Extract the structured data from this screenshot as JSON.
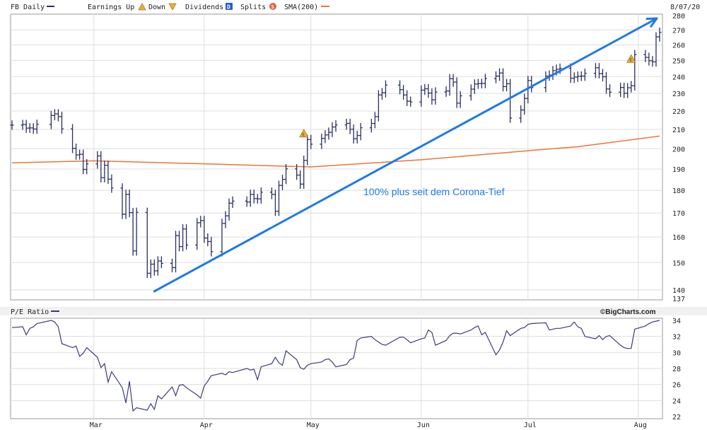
{
  "header": {
    "ticker_label": "FB Daily",
    "earnings_up_label": "Earnings Up",
    "down_label": "Down",
    "dividends_label": "Dividends",
    "dividends_marker": "D",
    "splits_label": "Splits",
    "splits_marker": "S",
    "sma_label": "SMA(200)",
    "date_label": "8/07/20"
  },
  "lower_panel": {
    "title": "P/E Ratio",
    "credit": "©BigCharts.com"
  },
  "colors": {
    "price_bars": "#2b2f5e",
    "sma": "#e8763a",
    "trendline": "#1f7ae6",
    "pe_line": "#3c3c78",
    "grid": "#dddddd",
    "panel_bg": "#f1f1f1",
    "earnings_marker": "#e8b13a"
  },
  "chart_data": [
    {
      "type": "ohlc",
      "title": "FB Daily",
      "x_ticks": [
        "Mar",
        "Apr",
        "May",
        "Jun",
        "Jul",
        "Aug"
      ],
      "x_range": [
        "2020-02-07",
        "2020-08-07"
      ],
      "ylim": [
        137,
        280
      ],
      "y_ticks": [
        137,
        140,
        150,
        160,
        170,
        180,
        190,
        200,
        210,
        220,
        230,
        240,
        250,
        260,
        270,
        280
      ],
      "scale": "log",
      "grid": true,
      "closes": [
        [
          "2020-02-07",
          212.3
        ],
        [
          "2020-02-10",
          212.6
        ],
        [
          "2020-02-11",
          210.7
        ],
        [
          "2020-02-12",
          210.8
        ],
        [
          "2020-02-13",
          210.2
        ],
        [
          "2020-02-14",
          212.7
        ],
        [
          "2020-02-18",
          217.5
        ],
        [
          "2020-02-19",
          218.4
        ],
        [
          "2020-02-20",
          216.9
        ],
        [
          "2020-02-21",
          210.3
        ],
        [
          "2020-02-24",
          200.2
        ],
        [
          "2020-02-25",
          196.9
        ],
        [
          "2020-02-26",
          197.2
        ],
        [
          "2020-02-27",
          189.8
        ],
        [
          "2020-02-28",
          192.5
        ],
        [
          "2020-03-02",
          196.4
        ],
        [
          "2020-03-03",
          185.9
        ],
        [
          "2020-03-04",
          191.8
        ],
        [
          "2020-03-05",
          185.2
        ],
        [
          "2020-03-06",
          181.1
        ],
        [
          "2020-03-09",
          169.5
        ],
        [
          "2020-03-10",
          178.2
        ],
        [
          "2020-03-11",
          170.2
        ],
        [
          "2020-03-12",
          154.5
        ],
        [
          "2020-03-13",
          170.3
        ],
        [
          "2020-03-16",
          146.0
        ],
        [
          "2020-03-17",
          149.4
        ],
        [
          "2020-03-18",
          146.9
        ],
        [
          "2020-03-19",
          150.6
        ],
        [
          "2020-03-20",
          149.7
        ],
        [
          "2020-03-23",
          148.1
        ],
        [
          "2020-03-24",
          160.6
        ],
        [
          "2020-03-25",
          156.2
        ],
        [
          "2020-03-26",
          163.3
        ],
        [
          "2020-03-27",
          156.8
        ],
        [
          "2020-03-30",
          165.9
        ],
        [
          "2020-03-31",
          166.8
        ],
        [
          "2020-04-01",
          159.6
        ],
        [
          "2020-04-02",
          158.2
        ],
        [
          "2020-04-03",
          154.2
        ],
        [
          "2020-04-06",
          165.6
        ],
        [
          "2020-04-07",
          168.8
        ],
        [
          "2020-04-08",
          174.3
        ],
        [
          "2020-04-09",
          175.2
        ],
        [
          "2020-04-13",
          174.8
        ],
        [
          "2020-04-14",
          178.2
        ],
        [
          "2020-04-15",
          176.3
        ],
        [
          "2020-04-16",
          176.2
        ],
        [
          "2020-04-17",
          179.2
        ],
        [
          "2020-04-20",
          178.2
        ],
        [
          "2020-04-21",
          170.8
        ],
        [
          "2020-04-22",
          182.3
        ],
        [
          "2020-04-23",
          185.1
        ],
        [
          "2020-04-24",
          190.1
        ],
        [
          "2020-04-27",
          187.1
        ],
        [
          "2020-04-28",
          182.9
        ],
        [
          "2020-04-29",
          194.2
        ],
        [
          "2020-04-30",
          204.7
        ],
        [
          "2020-05-01",
          202.3
        ],
        [
          "2020-05-04",
          205.3
        ],
        [
          "2020-05-05",
          207.1
        ],
        [
          "2020-05-06",
          208.5
        ],
        [
          "2020-05-07",
          211.3
        ],
        [
          "2020-05-08",
          212.4
        ],
        [
          "2020-05-11",
          213.2
        ],
        [
          "2020-05-12",
          210.1
        ],
        [
          "2020-05-13",
          205.1
        ],
        [
          "2020-05-14",
          206.8
        ],
        [
          "2020-05-15",
          210.9
        ],
        [
          "2020-05-18",
          213.2
        ],
        [
          "2020-05-19",
          216.9
        ],
        [
          "2020-05-20",
          229.1
        ],
        [
          "2020-05-21",
          230.4
        ],
        [
          "2020-05-22",
          234.9
        ],
        [
          "2020-05-26",
          232.2
        ],
        [
          "2020-05-27",
          229.1
        ],
        [
          "2020-05-28",
          225.5
        ],
        [
          "2020-05-29",
          225.1
        ],
        [
          "2020-06-01",
          231.9
        ],
        [
          "2020-06-02",
          232.7
        ],
        [
          "2020-06-03",
          230.2
        ],
        [
          "2020-06-04",
          226.3
        ],
        [
          "2020-06-05",
          230.8
        ],
        [
          "2020-06-08",
          231.4
        ],
        [
          "2020-06-09",
          238.7
        ],
        [
          "2020-06-10",
          236.7
        ],
        [
          "2020-06-11",
          224.4
        ],
        [
          "2020-06-12",
          228.6
        ],
        [
          "2020-06-15",
          232.5
        ],
        [
          "2020-06-16",
          235.5
        ],
        [
          "2020-06-17",
          235.8
        ],
        [
          "2020-06-18",
          235.9
        ],
        [
          "2020-06-19",
          238.8
        ],
        [
          "2020-06-22",
          240.3
        ],
        [
          "2020-06-23",
          242.2
        ],
        [
          "2020-06-24",
          234.0
        ],
        [
          "2020-06-25",
          235.7
        ],
        [
          "2020-06-26",
          216.1
        ],
        [
          "2020-06-29",
          220.6
        ],
        [
          "2020-06-30",
          227.1
        ],
        [
          "2020-07-01",
          237.6
        ],
        [
          "2020-07-02",
          233.4
        ],
        [
          "2020-07-06",
          240.3
        ],
        [
          "2020-07-07",
          240.9
        ],
        [
          "2020-07-08",
          243.6
        ],
        [
          "2020-07-09",
          244.5
        ],
        [
          "2020-07-10",
          245.1
        ],
        [
          "2020-07-13",
          239.0
        ],
        [
          "2020-07-14",
          239.7
        ],
        [
          "2020-07-15",
          240.2
        ],
        [
          "2020-07-16",
          240.3
        ],
        [
          "2020-07-17",
          242.0
        ],
        [
          "2020-07-20",
          245.4
        ],
        [
          "2020-07-21",
          241.8
        ],
        [
          "2020-07-22",
          239.9
        ],
        [
          "2020-07-23",
          232.6
        ],
        [
          "2020-07-24",
          230.7
        ],
        [
          "2020-07-27",
          233.5
        ],
        [
          "2020-07-28",
          230.1
        ],
        [
          "2020-07-29",
          233.3
        ],
        [
          "2020-07-30",
          234.5
        ],
        [
          "2020-07-31",
          253.7
        ],
        [
          "2020-08-03",
          251.9
        ],
        [
          "2020-08-04",
          249.8
        ],
        [
          "2020-08-05",
          249.1
        ],
        [
          "2020-08-06",
          265.3
        ],
        [
          "2020-08-07",
          268.4
        ]
      ],
      "sma_200": [
        [
          "2020-02-07",
          193.0
        ],
        [
          "2020-03-01",
          194.0
        ],
        [
          "2020-04-01",
          192.5
        ],
        [
          "2020-05-01",
          191.0
        ],
        [
          "2020-06-01",
          194.5
        ],
        [
          "2020-07-01",
          199.0
        ],
        [
          "2020-07-15",
          201.0
        ],
        [
          "2020-08-07",
          206.5
        ]
      ],
      "earnings_markers": [
        {
          "date": "2020-04-29",
          "label": "E"
        },
        {
          "date": "2020-07-30",
          "label": "E"
        }
      ],
      "trendline": {
        "from": [
          "2020-03-18",
          139.5
        ],
        "to": [
          "2020-08-07",
          278
        ],
        "annotation": "100% plus seit dem Corona-Tief"
      }
    },
    {
      "type": "line",
      "title": "P/E Ratio",
      "ylim": [
        22,
        34
      ],
      "y_ticks": [
        22,
        24,
        26,
        28,
        30,
        32,
        34
      ],
      "grid": true,
      "values": [
        [
          "2020-02-07",
          33.1
        ],
        [
          "2020-02-10",
          33.2
        ],
        [
          "2020-02-11",
          32.2
        ],
        [
          "2020-02-12",
          33.0
        ],
        [
          "2020-02-13",
          33.2
        ],
        [
          "2020-02-14",
          33.6
        ],
        [
          "2020-02-18",
          34.0
        ],
        [
          "2020-02-19",
          33.8
        ],
        [
          "2020-02-20",
          33.2
        ],
        [
          "2020-02-21",
          31.1
        ],
        [
          "2020-02-24",
          30.6
        ],
        [
          "2020-02-25",
          30.8
        ],
        [
          "2020-02-26",
          29.5
        ],
        [
          "2020-02-27",
          29.9
        ],
        [
          "2020-02-28",
          30.6
        ],
        [
          "2020-03-02",
          29.4
        ],
        [
          "2020-03-03",
          28.1
        ],
        [
          "2020-03-04",
          28.6
        ],
        [
          "2020-03-05",
          26.3
        ],
        [
          "2020-03-06",
          27.6
        ],
        [
          "2020-03-09",
          25.6
        ],
        [
          "2020-03-10",
          23.7
        ],
        [
          "2020-03-11",
          26.4
        ],
        [
          "2020-03-12",
          22.7
        ],
        [
          "2020-03-13",
          23.1
        ],
        [
          "2020-03-16",
          22.8
        ],
        [
          "2020-03-17",
          23.6
        ],
        [
          "2020-03-18",
          22.9
        ],
        [
          "2020-03-19",
          24.6
        ],
        [
          "2020-03-20",
          24.2
        ],
        [
          "2020-03-23",
          25.7
        ],
        [
          "2020-03-24",
          24.6
        ],
        [
          "2020-03-25",
          25.9
        ],
        [
          "2020-03-26",
          26.0
        ],
        [
          "2020-03-27",
          25.6
        ],
        [
          "2020-03-30",
          24.7
        ],
        [
          "2020-03-31",
          24.3
        ],
        [
          "2020-04-01",
          25.8
        ],
        [
          "2020-04-02",
          26.4
        ],
        [
          "2020-04-03",
          27.1
        ],
        [
          "2020-04-06",
          27.4
        ],
        [
          "2020-04-07",
          27.2
        ],
        [
          "2020-04-08",
          27.6
        ],
        [
          "2020-04-09",
          27.5
        ],
        [
          "2020-04-13",
          28.0
        ],
        [
          "2020-04-14",
          27.8
        ],
        [
          "2020-04-15",
          27.9
        ],
        [
          "2020-04-16",
          26.6
        ],
        [
          "2020-04-17",
          28.2
        ],
        [
          "2020-04-20",
          28.6
        ],
        [
          "2020-04-21",
          29.4
        ],
        [
          "2020-04-22",
          28.7
        ],
        [
          "2020-04-23",
          28.4
        ],
        [
          "2020-04-24",
          30.2
        ],
        [
          "2020-04-27",
          29.1
        ],
        [
          "2020-04-28",
          28.1
        ],
        [
          "2020-04-29",
          27.9
        ],
        [
          "2020-04-30",
          28.4
        ],
        [
          "2020-05-01",
          28.6
        ],
        [
          "2020-05-04",
          28.8
        ],
        [
          "2020-05-05",
          29.1
        ],
        [
          "2020-05-06",
          29.2
        ],
        [
          "2020-05-07",
          28.8
        ],
        [
          "2020-05-08",
          28.2
        ],
        [
          "2020-05-11",
          28.5
        ],
        [
          "2020-05-12",
          29.1
        ],
        [
          "2020-05-13",
          29.3
        ],
        [
          "2020-05-14",
          31.5
        ],
        [
          "2020-05-15",
          31.8
        ],
        [
          "2020-05-18",
          32.0
        ],
        [
          "2020-05-19",
          31.6
        ],
        [
          "2020-05-20",
          31.3
        ],
        [
          "2020-05-21",
          31.0
        ],
        [
          "2020-05-22",
          30.9
        ],
        [
          "2020-05-26",
          31.9
        ],
        [
          "2020-05-27",
          31.9
        ],
        [
          "2020-05-28",
          31.6
        ],
        [
          "2020-05-29",
          31.2
        ],
        [
          "2020-06-01",
          31.7
        ],
        [
          "2020-06-02",
          31.8
        ],
        [
          "2020-06-03",
          32.8
        ],
        [
          "2020-06-04",
          32.5
        ],
        [
          "2020-06-05",
          30.9
        ],
        [
          "2020-06-08",
          31.5
        ],
        [
          "2020-06-09",
          32.1
        ],
        [
          "2020-06-10",
          32.4
        ],
        [
          "2020-06-11",
          32.4
        ],
        [
          "2020-06-12",
          32.3
        ],
        [
          "2020-06-15",
          32.8
        ],
        [
          "2020-06-16",
          33.1
        ],
        [
          "2020-06-17",
          33.3
        ],
        [
          "2020-06-18",
          32.2
        ],
        [
          "2020-06-19",
          32.5
        ],
        [
          "2020-06-22",
          29.7
        ],
        [
          "2020-06-23",
          30.3
        ],
        [
          "2020-06-24",
          31.3
        ],
        [
          "2020-06-25",
          32.7
        ],
        [
          "2020-06-26",
          32.1
        ],
        [
          "2020-06-29",
          33.0
        ],
        [
          "2020-06-30",
          33.1
        ],
        [
          "2020-07-01",
          33.5
        ],
        [
          "2020-07-02",
          33.6
        ],
        [
          "2020-07-06",
          33.7
        ],
        [
          "2020-07-07",
          32.8
        ],
        [
          "2020-07-08",
          32.9
        ],
        [
          "2020-07-09",
          33.0
        ],
        [
          "2020-07-10",
          33.0
        ],
        [
          "2020-07-13",
          33.3
        ],
        [
          "2020-07-14",
          33.8
        ],
        [
          "2020-07-15",
          33.2
        ],
        [
          "2020-07-16",
          33.0
        ],
        [
          "2020-07-17",
          32.0
        ],
        [
          "2020-07-20",
          31.7
        ],
        [
          "2020-07-21",
          32.1
        ],
        [
          "2020-07-22",
          31.6
        ],
        [
          "2020-07-23",
          32.0
        ],
        [
          "2020-07-24",
          32.1
        ],
        [
          "2020-07-27",
          30.9
        ],
        [
          "2020-07-28",
          30.6
        ],
        [
          "2020-07-29",
          30.5
        ],
        [
          "2020-07-30",
          30.5
        ],
        [
          "2020-07-31",
          32.9
        ],
        [
          "2020-08-03",
          33.3
        ],
        [
          "2020-08-04",
          33.6
        ],
        [
          "2020-08-05",
          33.8
        ],
        [
          "2020-08-06",
          33.9
        ],
        [
          "2020-08-07",
          34.0
        ]
      ]
    }
  ]
}
